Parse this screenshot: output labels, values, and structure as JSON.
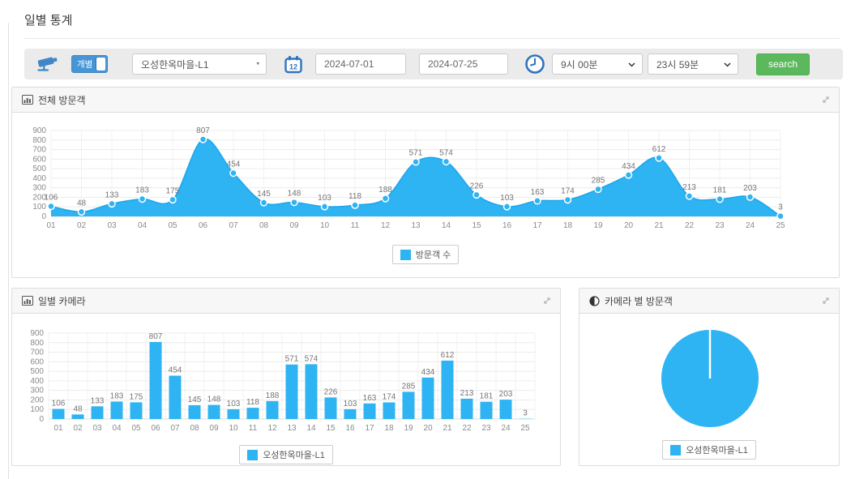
{
  "page": {
    "title": "일별 통계"
  },
  "toolbar": {
    "camera_icon": "cctv-camera-icon",
    "mode_toggle": {
      "label": "개별",
      "state": "on"
    },
    "camera_select": {
      "value": "오성한옥마을-L1"
    },
    "calendar_icon_text": "12",
    "date_range": {
      "from": "2024-07-01",
      "to": "2024-07-25"
    },
    "time_range": {
      "from": "9시 00분",
      "to": "23시 59분"
    },
    "search_label": "search"
  },
  "panels": {
    "total": {
      "title": "전체 방문객",
      "legend": "방문객 수"
    },
    "daily": {
      "title": "일별 카메라",
      "legend": "오성한옥마을-L1"
    },
    "byCamera": {
      "title": "카메라 별 방문객",
      "legend": "오성한옥마을-L1"
    }
  },
  "colors": {
    "chart_blue": "#2eb3f3",
    "chart_line_blue": "#1ba6ea",
    "accent_blue": "#4695d6",
    "icon_blue": "#3478bf",
    "search_green": "#5cb85c"
  },
  "chart_data": [
    {
      "type": "area",
      "title": "전체 방문객",
      "categories": [
        "01",
        "02",
        "03",
        "04",
        "05",
        "06",
        "07",
        "08",
        "09",
        "10",
        "11",
        "12",
        "13",
        "14",
        "15",
        "16",
        "17",
        "18",
        "19",
        "20",
        "21",
        "22",
        "23",
        "24",
        "25"
      ],
      "series": [
        {
          "name": "방문객 수",
          "values": [
            106,
            48,
            133,
            183,
            175,
            807,
            454,
            145,
            148,
            103,
            118,
            188,
            571,
            574,
            226,
            103,
            163,
            174,
            285,
            434,
            612,
            213,
            181,
            203,
            3
          ]
        }
      ],
      "xlabel": "",
      "ylabel": "",
      "ylim": [
        0,
        900
      ],
      "ytick_step": 100,
      "grid": true,
      "point_labels": true,
      "legend_position": "bottom"
    },
    {
      "type": "bar",
      "title": "일별 카메라",
      "categories": [
        "01",
        "02",
        "03",
        "04",
        "05",
        "06",
        "07",
        "08",
        "09",
        "10",
        "11",
        "12",
        "13",
        "14",
        "15",
        "16",
        "17",
        "18",
        "19",
        "20",
        "21",
        "22",
        "23",
        "24",
        "25"
      ],
      "series": [
        {
          "name": "오성한옥마을-L1",
          "values": [
            106,
            48,
            133,
            183,
            175,
            807,
            454,
            145,
            148,
            103,
            118,
            188,
            571,
            574,
            226,
            103,
            163,
            174,
            285,
            434,
            612,
            213,
            181,
            203,
            3
          ]
        }
      ],
      "xlabel": "",
      "ylabel": "",
      "ylim": [
        0,
        900
      ],
      "ytick_step": 100,
      "grid": true,
      "bar_labels": true,
      "legend_position": "bottom"
    },
    {
      "type": "pie",
      "title": "카메라 별 방문객",
      "slices": [
        {
          "label": "오성한옥마을-L1",
          "value": 100
        }
      ],
      "legend_position": "bottom"
    }
  ]
}
